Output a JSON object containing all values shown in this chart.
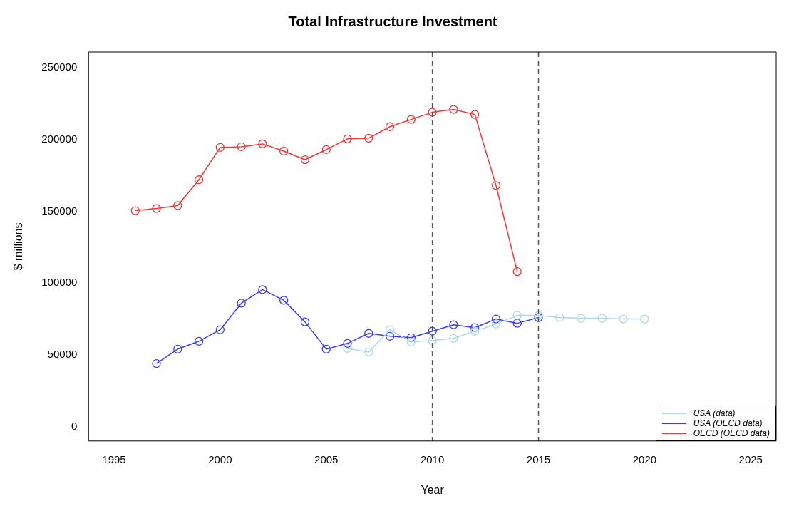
{
  "chart_data": {
    "type": "line",
    "title": "Total Infrastructure Investment",
    "xlabel": "Year",
    "ylabel": "$ millions",
    "xlim": [
      1993.8,
      2026.2
    ],
    "xticks": [
      1995,
      2000,
      2005,
      2010,
      2015,
      2020,
      2025
    ],
    "ylim": [
      -10000,
      261000
    ],
    "yticks": [
      0,
      50000,
      100000,
      150000,
      200000,
      250000
    ],
    "grid": false,
    "legend": "bottom right",
    "marker": "circle",
    "line_style": "solid",
    "ref_lines": [
      {
        "axis": "x",
        "value": 2010,
        "color": "#555555",
        "line_style": "dashed"
      },
      {
        "axis": "x",
        "value": 2015,
        "color": "#555555",
        "line_style": "dashed"
      }
    ],
    "series": [
      {
        "name": "USA (data)",
        "color": "#add8e6",
        "x": [
          2006,
          2007,
          2008,
          2009,
          2010,
          2011,
          2012,
          2013,
          2014,
          2015,
          2016,
          2017,
          2018,
          2019,
          2020
        ],
        "values": [
          54500,
          52000,
          67500,
          59000,
          60000,
          61500,
          66500,
          71500,
          77500,
          77500,
          76000,
          75500,
          75500,
          75000,
          75000
        ]
      },
      {
        "name": "USA (OECD data)",
        "color": "#3b3bff",
        "x": [
          1997,
          1998,
          1999,
          2000,
          2001,
          2002,
          2003,
          2004,
          2005,
          2006,
          2007,
          2008,
          2009,
          2010,
          2011,
          2012,
          2013,
          2014,
          2015
        ],
        "values": [
          44000,
          54000,
          59500,
          67500,
          86000,
          95500,
          88000,
          73000,
          54000,
          58000,
          65000,
          63000,
          62000,
          66500,
          71000,
          69000,
          75000,
          72000,
          76000
        ]
      },
      {
        "name": "OECD (OECD data)",
        "color": "#ff3030",
        "x": [
          1996,
          1997,
          1998,
          1999,
          2000,
          2001,
          2002,
          2003,
          2004,
          2005,
          2006,
          2007,
          2008,
          2009,
          2010,
          2011,
          2012,
          2013,
          2014
        ],
        "values": [
          150500,
          152000,
          154000,
          172000,
          194500,
          195000,
          197000,
          192000,
          186000,
          193000,
          200500,
          201000,
          209000,
          214000,
          219000,
          221000,
          217500,
          168000,
          108000
        ]
      }
    ]
  }
}
